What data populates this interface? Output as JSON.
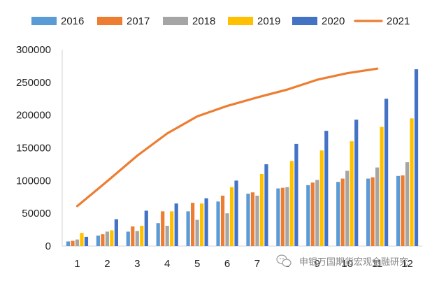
{
  "chart_data": {
    "type": "bar",
    "categories": [
      "1",
      "2",
      "3",
      "4",
      "5",
      "6",
      "7",
      "8",
      "9",
      "10",
      "11",
      "12"
    ],
    "ylim": [
      0,
      300000
    ],
    "yticks": [
      0,
      50000,
      100000,
      150000,
      200000,
      250000,
      300000
    ],
    "ytick_labels": [
      "0",
      "50000",
      "100000",
      "150000",
      "200000",
      "250000",
      "300000"
    ],
    "xtick_labels": [
      "1",
      "2",
      "3",
      "4",
      "5",
      "6",
      "7",
      "8",
      "9",
      "10",
      "11",
      "12"
    ],
    "grid": false,
    "legend_position": "top",
    "series": [
      {
        "name": "2016",
        "kind": "bar",
        "color": "#5b9bd5",
        "values": [
          7000,
          16000,
          22000,
          35000,
          53000,
          68000,
          80000,
          88000,
          93000,
          98000,
          103000,
          107000
        ]
      },
      {
        "name": "2017",
        "kind": "bar",
        "color": "#ed7d31",
        "values": [
          8000,
          18000,
          30000,
          53000,
          66000,
          77000,
          82000,
          89000,
          97000,
          103000,
          105000,
          108000
        ]
      },
      {
        "name": "2018",
        "kind": "bar",
        "color": "#a5a5a5",
        "values": [
          10000,
          22000,
          23000,
          31000,
          40000,
          50000,
          77000,
          90000,
          101000,
          115000,
          120000,
          128000
        ]
      },
      {
        "name": "2019",
        "kind": "bar",
        "color": "#ffc000",
        "values": [
          20000,
          24000,
          31000,
          53000,
          65000,
          90000,
          110000,
          130000,
          146000,
          160000,
          182000,
          195000
        ]
      },
      {
        "name": "2020",
        "kind": "bar",
        "color": "#4472c4",
        "values": [
          14000,
          41000,
          54000,
          65000,
          73000,
          100000,
          125000,
          156000,
          176000,
          193000,
          225000,
          270000
        ]
      },
      {
        "name": "2021",
        "kind": "line",
        "color": "#ed7d31",
        "values": [
          61000,
          99000,
          138000,
          172000,
          198000,
          214000,
          227000,
          239000,
          254000,
          264000,
          271000,
          null
        ]
      }
    ]
  },
  "watermark": {
    "text": "申银万国期货宏观金融研究",
    "icon": "wechat-icon"
  }
}
